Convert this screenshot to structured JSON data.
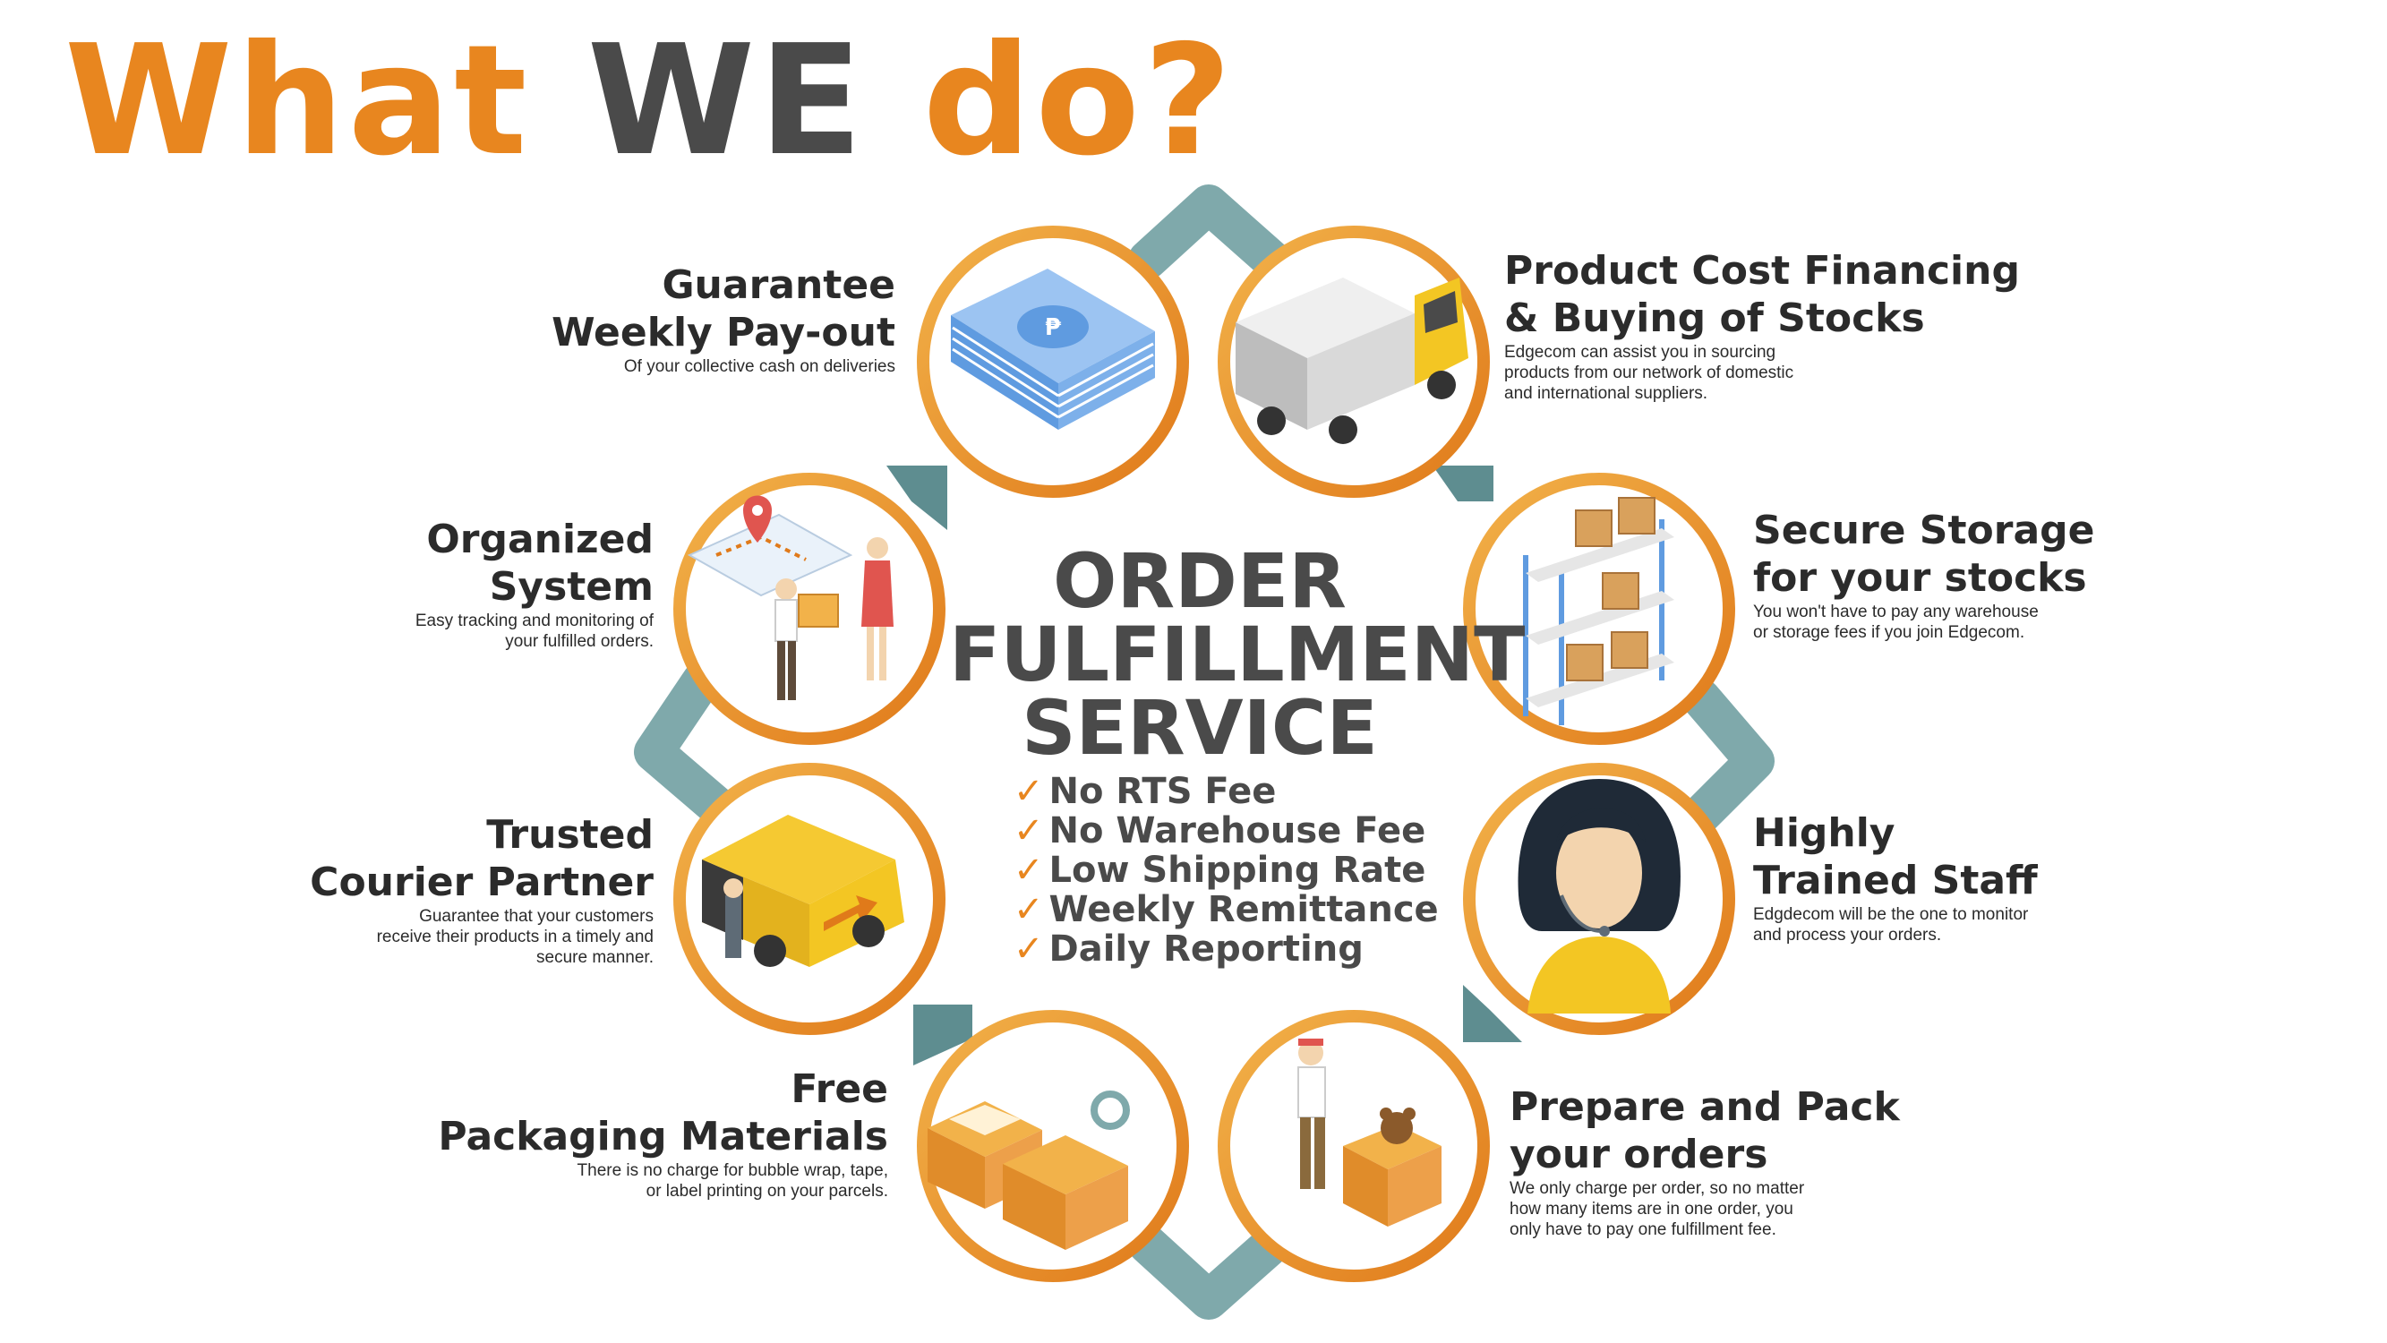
{
  "title": {
    "part1": "What",
    "part2": "WE",
    "part3": "do?"
  },
  "center": {
    "line1": "ORDER",
    "line2": "FULFILLMENT",
    "line3": "SERVICE",
    "benefits": [
      "No RTS Fee",
      "No Warehouse Fee",
      "Low Shipping Rate",
      "Weekly Remittance",
      "Daily Reporting"
    ]
  },
  "features": {
    "payout": {
      "title1": "Guarantee",
      "title2": "Weekly Pay-out",
      "desc": [
        "Of your collective cash on deliveries"
      ]
    },
    "financing": {
      "title1": "Product Cost Financing",
      "title2": "& Buying of Stocks",
      "desc": [
        "Edgecom can assist you in sourcing",
        "products from our network of domestic",
        "and international suppliers."
      ]
    },
    "storage": {
      "title1": "Secure Storage",
      "title2": "for your stocks",
      "desc": [
        "You won't have to pay any warehouse",
        "or storage fees if you join Edgecom."
      ]
    },
    "staff": {
      "title1": "Highly",
      "title2": "Trained Staff",
      "desc": [
        "Edgdecom will be the one to monitor",
        "and process your orders."
      ]
    },
    "pack": {
      "title1": "Prepare and Pack",
      "title2": "your orders",
      "desc": [
        "We only charge per order, so no matter",
        "how many items are in one order, you",
        "only have to pay one fulfillment fee."
      ]
    },
    "packaging": {
      "title1": "Free",
      "title2": "Packaging Materials",
      "desc": [
        "There is no charge for bubble wrap, tape,",
        "or label printing on your parcels."
      ]
    },
    "courier": {
      "title1": "Trusted",
      "title2": "Courier Partner",
      "desc": [
        "Guarantee that your customers",
        "receive their products in a timely and",
        "secure manner."
      ]
    },
    "organized": {
      "title1": "Organized",
      "title2": "System",
      "desc": [
        "Easy tracking and monitoring of",
        "your fulfilled orders."
      ]
    }
  },
  "colors": {
    "orange": "#E8861F",
    "ring_light": "#F2B24A",
    "arrow_teal": "#7FA9AB",
    "arrow_teal_dark": "#5E8D90",
    "title_gray": "#4a4a4a"
  },
  "icons": [
    "money-stack-icon",
    "delivery-truck-icon",
    "storage-shelf-icon",
    "support-agent-icon",
    "packing-worker-icon",
    "packaging-boxes-icon",
    "courier-van-icon",
    "map-tracking-icon",
    "checkmark-icon"
  ]
}
